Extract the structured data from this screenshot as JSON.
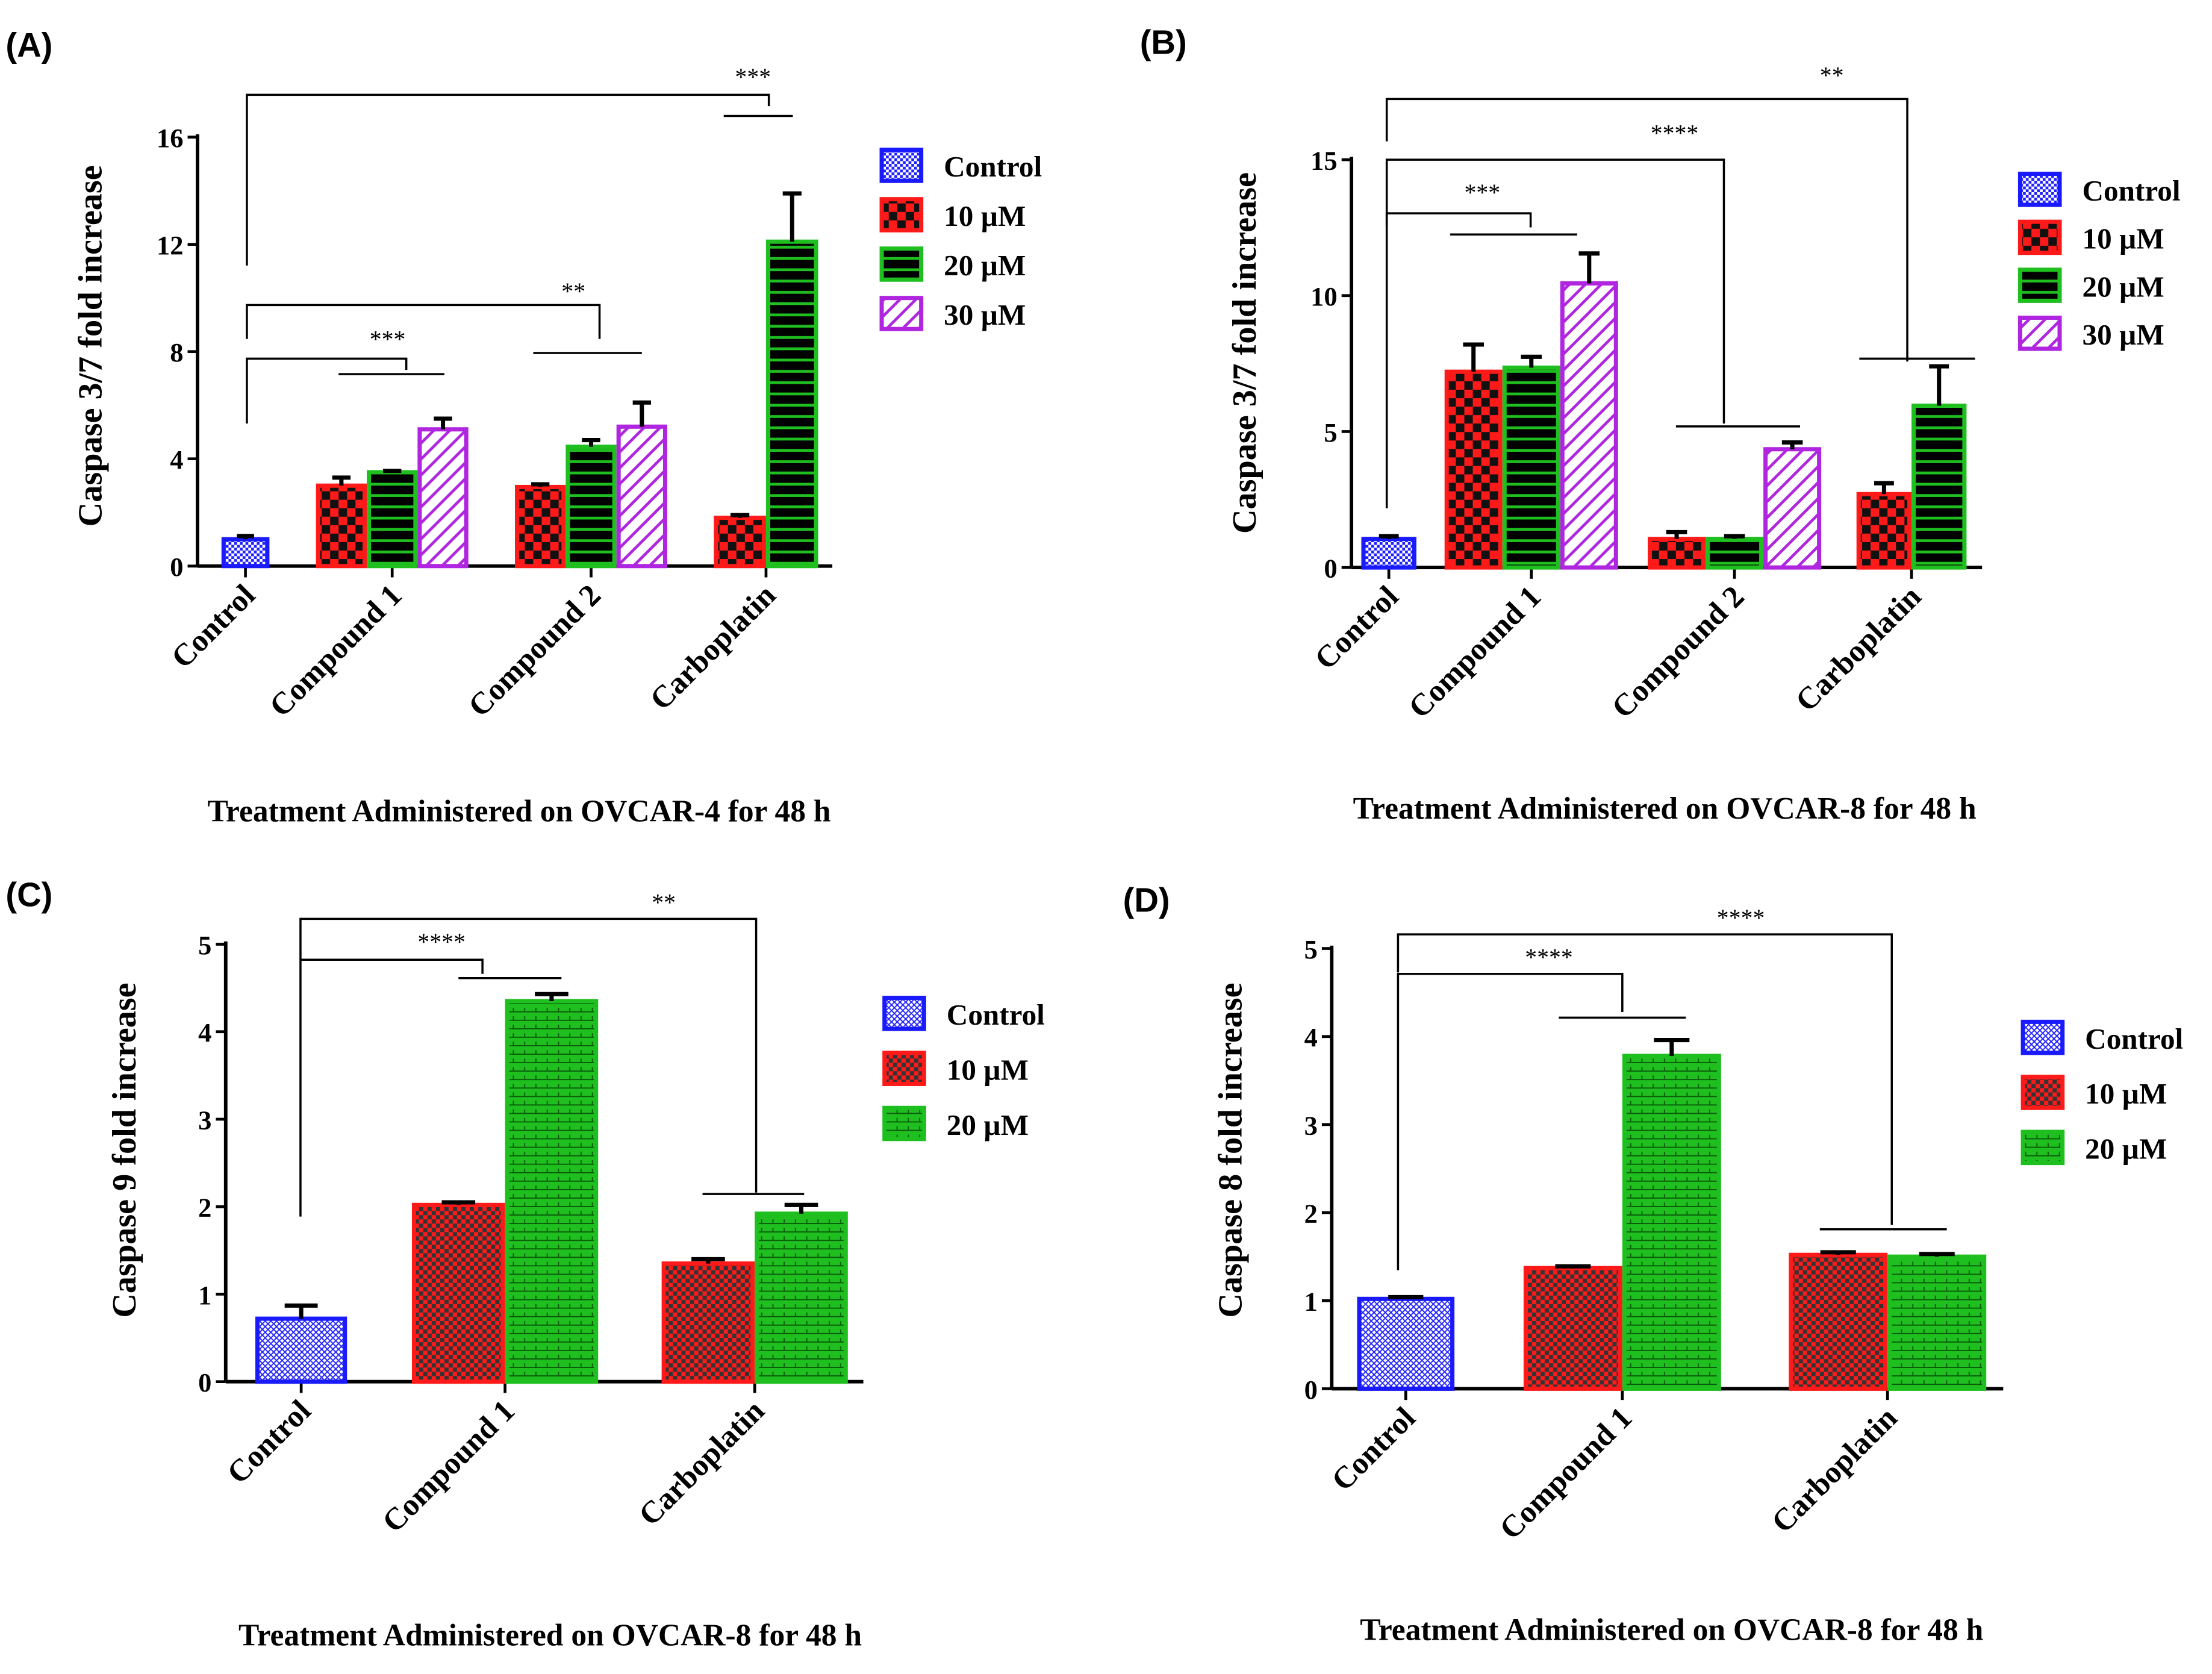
{
  "chart_data": [
    {
      "panel": "(A)",
      "type": "bar",
      "title": "Treatment Administered on OVCAR-4 for 48 h",
      "xlabel": "Treatment Administered on OVCAR-4 for 48 h",
      "ylabel": "Caspase 3/7 fold increase",
      "ylim": [
        0,
        16
      ],
      "yticks": [
        "0",
        "4",
        "8",
        "12",
        "16"
      ],
      "ytick_values": [
        0,
        4,
        8,
        12,
        16
      ],
      "legend": [
        "Control",
        "10 µM",
        "20 µM",
        "30 µM"
      ],
      "legend_placement": "right",
      "categories": [
        "Control",
        "Compound 1",
        "Compound 2",
        "Carboplatin"
      ],
      "bars": [
        [
          {
            "series": "Control",
            "value": 1.0,
            "error": 0.12
          }
        ],
        [
          {
            "series": "10 µM",
            "value": 3.0,
            "error": 0.3
          },
          {
            "series": "20 µM",
            "value": 3.5,
            "error": 0.05
          },
          {
            "series": "30 µM",
            "value": 5.1,
            "error": 0.4
          }
        ],
        [
          {
            "series": "10 µM",
            "value": 2.95,
            "error": 0.1
          },
          {
            "series": "20 µM",
            "value": 4.45,
            "error": 0.25
          },
          {
            "series": "30 µM",
            "value": 5.2,
            "error": 0.9
          }
        ],
        [
          {
            "series": "10 µM",
            "value": 1.8,
            "error": 0.1
          },
          {
            "series": "20 µM",
            "value": 12.1,
            "error": 1.8
          }
        ]
      ],
      "annotations": [
        "***",
        "**",
        "***"
      ]
    },
    {
      "panel": "(B)",
      "type": "bar",
      "title": "Treatment Administered on OVCAR-8 for 48 h",
      "xlabel": "Treatment Administered on OVCAR-8 for 48 h",
      "ylabel": "Caspase 3/7 fold increase",
      "ylim": [
        0,
        15
      ],
      "yticks": [
        "0",
        "5",
        "10",
        "15"
      ],
      "ytick_values": [
        0,
        5,
        10,
        15
      ],
      "legend": [
        "Control",
        "10 µM",
        "20 µM",
        "30 µM"
      ],
      "legend_placement": "right",
      "categories": [
        "Control",
        "Compound 1",
        "Compound 2",
        "Carboplatin"
      ],
      "bars": [
        [
          {
            "series": "Control",
            "value": 1.05,
            "error": 0.1
          }
        ],
        [
          {
            "series": "10 µM",
            "value": 7.2,
            "error": 1.0
          },
          {
            "series": "20 µM",
            "value": 7.35,
            "error": 0.4
          },
          {
            "series": "30 µM",
            "value": 10.45,
            "error": 1.1
          }
        ],
        [
          {
            "series": "10 µM",
            "value": 1.05,
            "error": 0.25
          },
          {
            "series": "20 µM",
            "value": 1.05,
            "error": 0.1
          },
          {
            "series": "30 µM",
            "value": 4.35,
            "error": 0.25
          }
        ],
        [
          {
            "series": "10 µM",
            "value": 2.7,
            "error": 0.4
          },
          {
            "series": "20 µM",
            "value": 5.95,
            "error": 1.45
          }
        ]
      ],
      "annotations": [
        "**",
        "****",
        "***"
      ]
    },
    {
      "panel": "(C)",
      "type": "bar",
      "title": "Treatment Administered on OVCAR-8 for 48 h",
      "xlabel": "Treatment Administered on OVCAR-8 for 48 h",
      "ylabel": "Caspase 9 fold increase",
      "ylim": [
        0,
        5
      ],
      "yticks": [
        "0",
        "1",
        "2",
        "3",
        "4",
        "5"
      ],
      "ytick_values": [
        0,
        1,
        2,
        3,
        4,
        5
      ],
      "legend": [
        "Control",
        "10 µM",
        "20 µM"
      ],
      "legend_placement": "right",
      "categories": [
        "Control",
        "Compound 1",
        "Carboplatin"
      ],
      "bars": [
        [
          {
            "series": "Control",
            "value": 0.72,
            "error": 0.15
          }
        ],
        [
          {
            "series": "10 µM",
            "value": 2.02,
            "error": 0.03
          },
          {
            "series": "20 µM",
            "value": 4.35,
            "error": 0.08
          }
        ],
        [
          {
            "series": "10 µM",
            "value": 1.35,
            "error": 0.05
          },
          {
            "series": "20 µM",
            "value": 1.92,
            "error": 0.1
          }
        ]
      ],
      "annotations": [
        "**",
        "****"
      ]
    },
    {
      "panel": "(D)",
      "type": "bar",
      "title": "Treatment Administered on OVCAR-8 for 48 h",
      "xlabel": "Treatment Administered on OVCAR-8 for 48 h",
      "ylabel": "Caspase 8 fold increase",
      "ylim": [
        0,
        5
      ],
      "yticks": [
        "0",
        "1",
        "2",
        "3",
        "4",
        "5"
      ],
      "ytick_values": [
        0,
        1,
        2,
        3,
        4,
        5
      ],
      "legend": [
        "Control",
        "10 µM",
        "20 µM"
      ],
      "legend_placement": "right",
      "categories": [
        "Control",
        "Compound 1",
        "Carboplatin"
      ],
      "bars": [
        [
          {
            "series": "Control",
            "value": 1.02,
            "error": 0.02
          }
        ],
        [
          {
            "series": "10 µM",
            "value": 1.37,
            "error": 0.02
          },
          {
            "series": "20 µM",
            "value": 3.78,
            "error": 0.18
          }
        ],
        [
          {
            "series": "10 µM",
            "value": 1.52,
            "error": 0.03
          },
          {
            "series": "20 µM",
            "value": 1.5,
            "error": 0.03
          }
        ]
      ],
      "annotations": [
        "****",
        "****"
      ]
    }
  ],
  "colors": {
    "control": "#1a1aff",
    "10uM": "#ff1a1a",
    "20uM": "#1fbf1f",
    "30uM": "#b026e0"
  }
}
